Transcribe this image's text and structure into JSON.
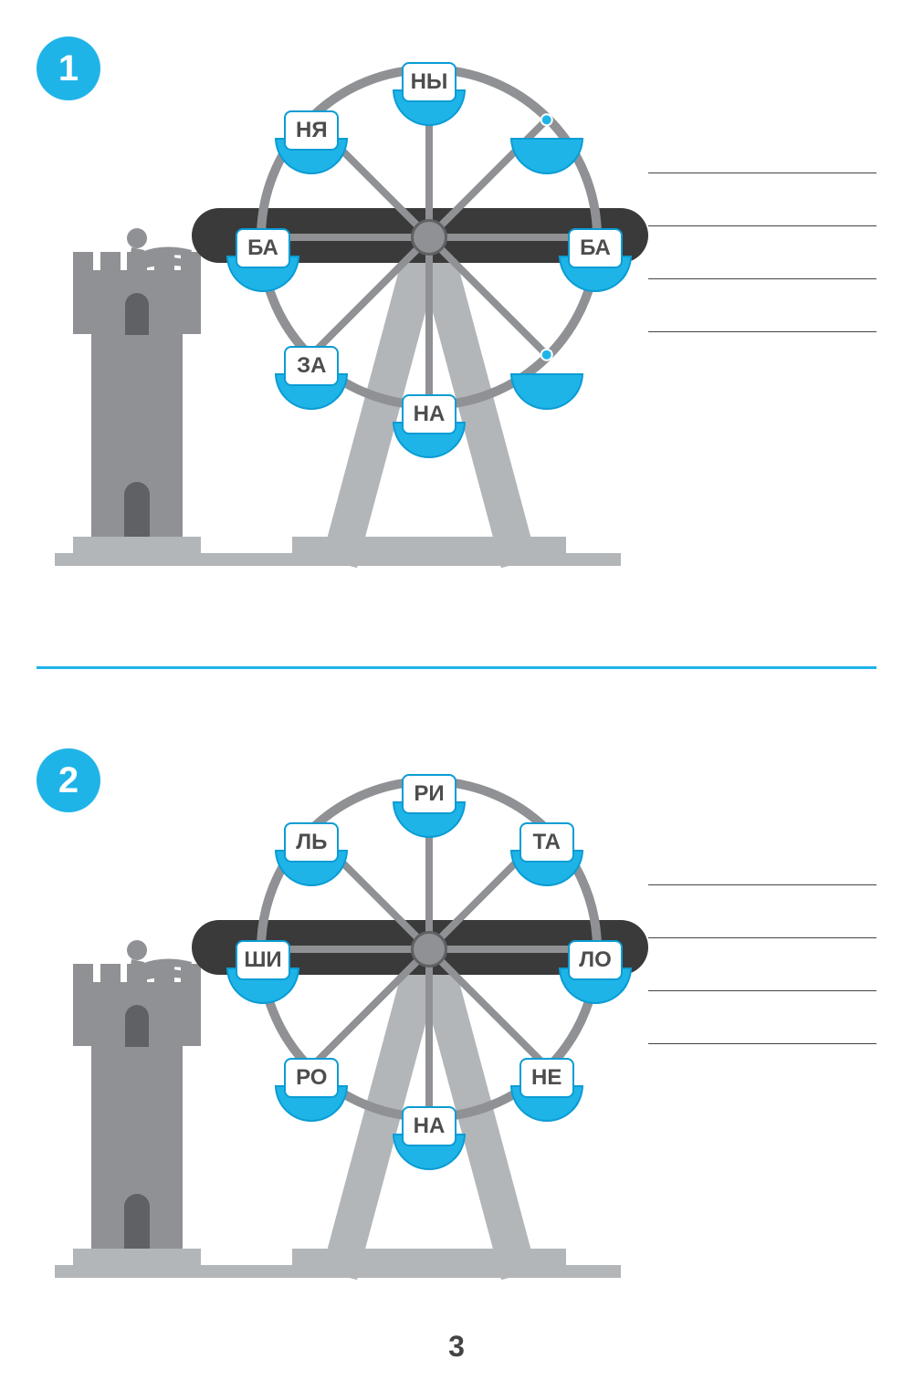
{
  "page_number": "3",
  "colors": {
    "accent": "#1fb4e8",
    "accent_dark": "#0a9cd4",
    "gray_light": "#b3b6b9",
    "gray_mid": "#8f9194",
    "gray_dark": "#5f6164",
    "beam": "#3a3a3a",
    "white": "#ffffff",
    "text": "#4d4d4f"
  },
  "wheel": {
    "radius": 190,
    "spoke_count": 8,
    "rim_width": 10,
    "hub_color": "#8f9194"
  },
  "exercises": [
    {
      "number": "1",
      "answer_line_count": 4,
      "gondolas": [
        {
          "angle": -90,
          "syllable": "НЫ"
        },
        {
          "angle": -135,
          "syllable": "НЯ"
        },
        {
          "angle": 180,
          "syllable": "БА"
        },
        {
          "angle": 135,
          "syllable": "ЗА"
        },
        {
          "angle": 90,
          "syllable": "НА"
        },
        {
          "angle": 45,
          "syllable": ""
        },
        {
          "angle": 0,
          "syllable": "БА"
        },
        {
          "angle": -45,
          "syllable": ""
        }
      ]
    },
    {
      "number": "2",
      "answer_line_count": 4,
      "gondolas": [
        {
          "angle": -90,
          "syllable": "РИ"
        },
        {
          "angle": -135,
          "syllable": "ЛЬ"
        },
        {
          "angle": 180,
          "syllable": "ШИ"
        },
        {
          "angle": 135,
          "syllable": "РО"
        },
        {
          "angle": 90,
          "syllable": "НА"
        },
        {
          "angle": 45,
          "syllable": "НЕ"
        },
        {
          "angle": 0,
          "syllable": "ЛО"
        },
        {
          "angle": -45,
          "syllable": "ТА"
        }
      ]
    }
  ]
}
